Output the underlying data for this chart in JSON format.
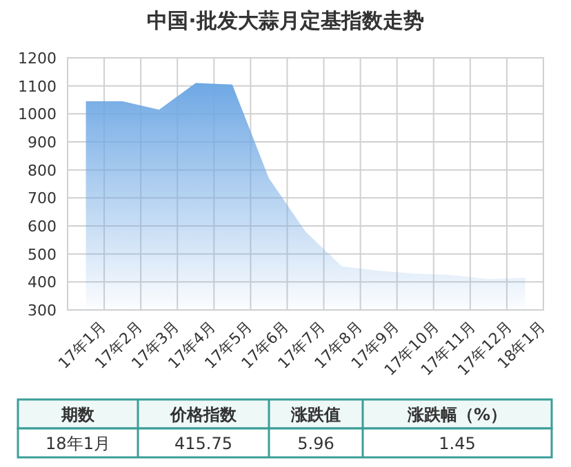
{
  "chart_data": {
    "type": "area",
    "title": "中国·批发大蒜月定基指数走势",
    "categories": [
      "17年1月",
      "17年2月",
      "17年3月",
      "17年4月",
      "17年5月",
      "17年6月",
      "17年7月",
      "17年8月",
      "17年9月",
      "17年10月",
      "17年11月",
      "17年12月",
      "18年1月"
    ],
    "values": [
      1045,
      1045,
      1015,
      1110,
      1105,
      770,
      580,
      455,
      440,
      430,
      425,
      410,
      415.75
    ],
    "color": "#6fa8e4",
    "ylim": [
      300,
      1200
    ],
    "yticks": [
      300,
      400,
      500,
      600,
      700,
      800,
      900,
      1000,
      1100,
      1200
    ],
    "grid": true,
    "annotations": [
      "期数",
      "价格指数",
      "涨跌值",
      "涨跌幅（%）",
      "18年1月",
      "415.75",
      "5.96",
      "1.45"
    ]
  }
}
